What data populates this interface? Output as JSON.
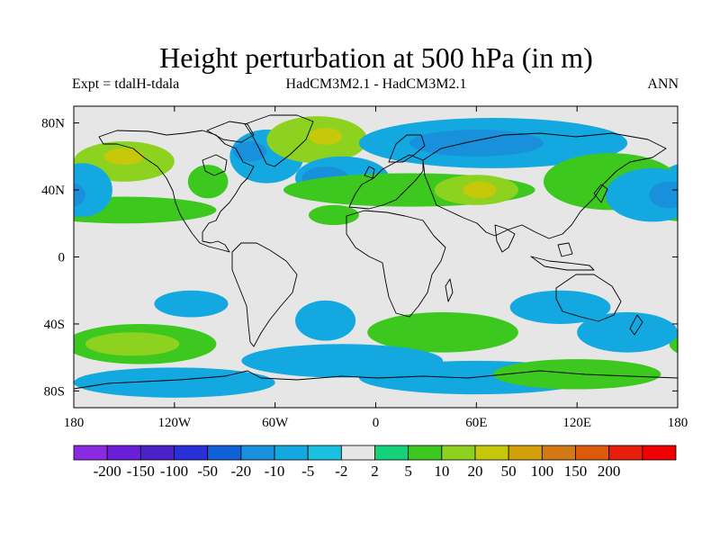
{
  "title": "Height perturbation at 500 hPa (in m)",
  "subtitle_left": "Expt = tdalH-tdala",
  "subtitle_center": "HadCM3M2.1 - HadCM3M2.1",
  "subtitle_right": "ANN",
  "map": {
    "projection": "cylindrical-equidistant",
    "lon_range": [
      -180,
      180
    ],
    "lat_range": [
      -90,
      90
    ],
    "background_color": "#e6e6e6",
    "x_ticks": [
      {
        "value": -180,
        "label": "180"
      },
      {
        "value": -120,
        "label": "120W"
      },
      {
        "value": -60,
        "label": "60W"
      },
      {
        "value": 0,
        "label": "0"
      },
      {
        "value": 60,
        "label": "60E"
      },
      {
        "value": 120,
        "label": "120E"
      },
      {
        "value": 180,
        "label": "180"
      }
    ],
    "y_ticks": [
      {
        "value": 80,
        "label": "80N"
      },
      {
        "value": 40,
        "label": "40N"
      },
      {
        "value": 0,
        "label": "0"
      },
      {
        "value": -40,
        "label": "40S"
      },
      {
        "value": -80,
        "label": "80S"
      }
    ]
  },
  "colorbar": {
    "colors": [
      "#8a2be2",
      "#6a1ed8",
      "#4a22c8",
      "#2a30d8",
      "#1060d8",
      "#1890dc",
      "#14a8e0",
      "#1ac0e0",
      "#e6e6e6",
      "#14d27a",
      "#3cc81e",
      "#8cd21e",
      "#c8c80a",
      "#d2a00a",
      "#d27814",
      "#dc5a0a",
      "#e61e0a",
      "#f00000"
    ],
    "labels": [
      "-200",
      "-150",
      "-100",
      "-50",
      "-20",
      "-10",
      "-5",
      "-2",
      "2",
      "5",
      "10",
      "20",
      "50",
      "100",
      "150",
      "200"
    ]
  },
  "chart_data": {
    "type": "heatmap",
    "title": "Height perturbation at 500 hPa (in m)",
    "xlabel": "",
    "ylabel": "",
    "x_axis": "longitude",
    "y_axis": "latitude",
    "xlim": [
      -180,
      180
    ],
    "ylim": [
      -90,
      90
    ],
    "contour_levels": [
      -200,
      -150,
      -100,
      -50,
      -20,
      -10,
      -5,
      -2,
      2,
      5,
      10,
      20,
      50,
      100,
      150,
      200
    ],
    "regions": [
      {
        "lon": -150,
        "lat": 57,
        "rlon": 30,
        "rlat": 12,
        "value": 12
      },
      {
        "lon": -150,
        "lat": 60,
        "rlon": 12,
        "rlat": 5,
        "value": 25
      },
      {
        "lon": -100,
        "lat": 45,
        "rlon": 12,
        "rlat": 10,
        "value": 6
      },
      {
        "lon": -65,
        "lat": 60,
        "rlon": 22,
        "rlat": 16,
        "value": -8
      },
      {
        "lon": -75,
        "lat": 63,
        "rlon": 10,
        "rlat": 6,
        "value": -14
      },
      {
        "lon": -35,
        "lat": 70,
        "rlon": 30,
        "rlat": 14,
        "value": 12
      },
      {
        "lon": -30,
        "lat": 72,
        "rlon": 10,
        "rlat": 5,
        "value": 25
      },
      {
        "lon": -20,
        "lat": 47,
        "rlon": 28,
        "rlat": 13,
        "value": -8
      },
      {
        "lon": -30,
        "lat": 47,
        "rlon": 14,
        "rlat": 7,
        "value": -14
      },
      {
        "lon": -150,
        "lat": 28,
        "rlon": 55,
        "rlat": 8,
        "value": 6
      },
      {
        "lon": -175,
        "lat": 40,
        "rlon": 18,
        "rlat": 16,
        "value": -8
      },
      {
        "lon": -178,
        "lat": 40,
        "rlon": 8,
        "rlat": 8,
        "value": -14
      },
      {
        "lon": 20,
        "lat": 40,
        "rlon": 75,
        "rlat": 10,
        "value": 8
      },
      {
        "lon": 60,
        "lat": 40,
        "rlon": 25,
        "rlat": 9,
        "value": 14
      },
      {
        "lon": 62,
        "lat": 40,
        "rlon": 10,
        "rlat": 5,
        "value": 25
      },
      {
        "lon": 70,
        "lat": 68,
        "rlon": 80,
        "rlat": 15,
        "value": -8
      },
      {
        "lon": 60,
        "lat": 68,
        "rlon": 40,
        "rlat": 8,
        "value": -14
      },
      {
        "lon": 140,
        "lat": 45,
        "rlon": 40,
        "rlat": 17,
        "value": 8
      },
      {
        "lon": 165,
        "lat": 37,
        "rlon": 28,
        "rlat": 16,
        "value": -8
      },
      {
        "lon": 175,
        "lat": 37,
        "rlon": 12,
        "rlat": 8,
        "value": -14
      },
      {
        "lon": -25,
        "lat": 25,
        "rlon": 15,
        "rlat": 6,
        "value": 6
      },
      {
        "lon": -110,
        "lat": -28,
        "rlon": 22,
        "rlat": 8,
        "value": -6
      },
      {
        "lon": -30,
        "lat": -38,
        "rlon": 18,
        "rlat": 12,
        "value": -6
      },
      {
        "lon": -140,
        "lat": -52,
        "rlon": 45,
        "rlat": 12,
        "value": 7
      },
      {
        "lon": -145,
        "lat": -52,
        "rlon": 28,
        "rlat": 7,
        "value": 14
      },
      {
        "lon": 110,
        "lat": -30,
        "rlon": 30,
        "rlat": 10,
        "value": -6
      },
      {
        "lon": 150,
        "lat": -45,
        "rlon": 30,
        "rlat": 12,
        "value": -6
      },
      {
        "lon": 40,
        "lat": -45,
        "rlon": 45,
        "rlat": 12,
        "value": 6
      },
      {
        "lon": -20,
        "lat": -62,
        "rlon": 60,
        "rlat": 10,
        "value": -6
      },
      {
        "lon": 60,
        "lat": -72,
        "rlon": 70,
        "rlat": 10,
        "value": -6
      },
      {
        "lon": 120,
        "lat": -70,
        "rlon": 50,
        "rlat": 9,
        "value": 7
      },
      {
        "lon": -120,
        "lat": -75,
        "rlon": 60,
        "rlat": 9,
        "value": -6
      }
    ]
  }
}
